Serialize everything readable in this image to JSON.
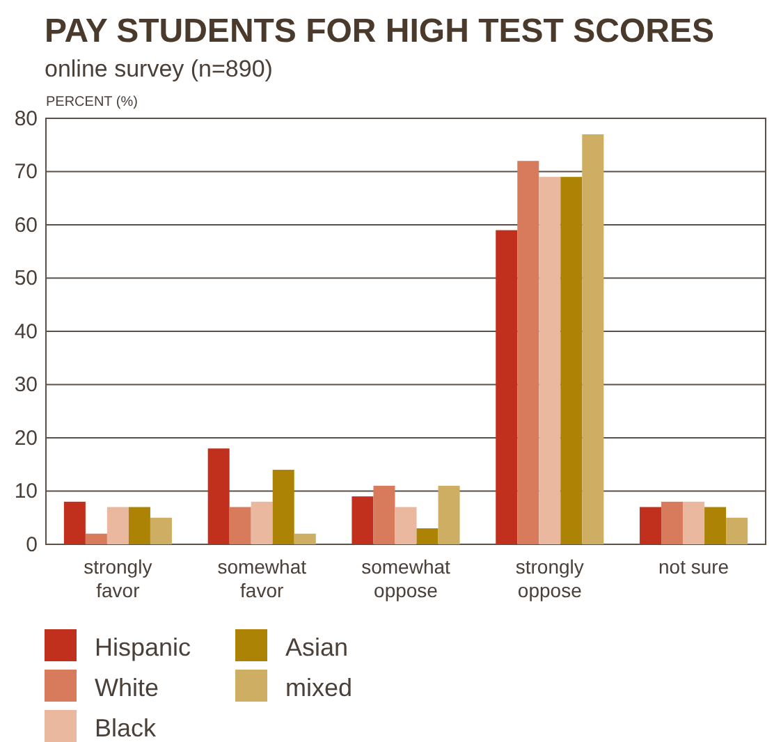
{
  "chart_data": {
    "type": "bar",
    "title": "PAY STUDENTS FOR HIGH TEST SCORES",
    "subtitle": "online survey (n=890)",
    "ylabel": "PERCENT (%)",
    "categories": [
      "strongly favor",
      "somewhat favor",
      "somewhat oppose",
      "strongly oppose",
      "not sure"
    ],
    "series": [
      {
        "name": "Hispanic",
        "color": "#c0301c",
        "values": [
          8,
          18,
          9,
          59,
          7
        ]
      },
      {
        "name": "White",
        "color": "#d87a5c",
        "values": [
          2,
          7,
          11,
          72,
          8
        ]
      },
      {
        "name": "Black",
        "color": "#eab89e",
        "values": [
          7,
          8,
          7,
          69,
          8
        ]
      },
      {
        "name": "Asian",
        "color": "#ac8305",
        "values": [
          7,
          14,
          3,
          69,
          7
        ]
      },
      {
        "name": "mixed",
        "color": "#cdae62",
        "values": [
          5,
          2,
          11,
          77,
          5
        ]
      }
    ],
    "ylim": [
      0,
      80
    ],
    "yticks": [
      0,
      10,
      20,
      30,
      40,
      50,
      60,
      70,
      80
    ],
    "grid": "y",
    "legend": "bottom left"
  }
}
